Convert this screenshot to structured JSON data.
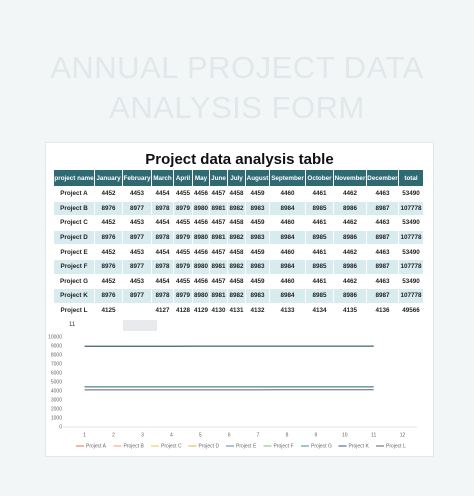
{
  "banner": [
    "ANNUAL PROJECT DATA",
    "ANALYSIS FORM"
  ],
  "table": {
    "title": "Project data analysis table",
    "header": [
      "project name",
      "January",
      "February",
      "March",
      "April",
      "May",
      "June",
      "July",
      "August",
      "September",
      "October",
      "November",
      "December",
      "total"
    ],
    "rows": [
      [
        "Project A",
        4452,
        4453,
        4454,
        4455,
        4456,
        4457,
        4458,
        4459,
        4460,
        4461,
        4462,
        4463,
        53490
      ],
      [
        "Project B",
        8976,
        8977,
        8978,
        8979,
        8980,
        8981,
        8982,
        8983,
        8984,
        8985,
        8986,
        8987,
        107778
      ],
      [
        "Project C",
        4452,
        4453,
        4454,
        4455,
        4456,
        4457,
        4458,
        4459,
        4460,
        4461,
        4462,
        4463,
        53490
      ],
      [
        "Project D",
        8976,
        8977,
        8978,
        8979,
        8980,
        8981,
        8982,
        8983,
        8984,
        8985,
        8986,
        8987,
        107778
      ],
      [
        "Project E",
        4452,
        4453,
        4454,
        4455,
        4456,
        4457,
        4458,
        4459,
        4460,
        4461,
        4462,
        4463,
        53490
      ],
      [
        "Project F",
        8976,
        8977,
        8978,
        8979,
        8980,
        8981,
        8982,
        8983,
        8984,
        8985,
        8986,
        8987,
        107778
      ],
      [
        "Project G",
        4452,
        4453,
        4454,
        4455,
        4456,
        4457,
        4458,
        4459,
        4460,
        4461,
        4462,
        4463,
        53490
      ],
      [
        "Project K",
        8976,
        8977,
        8978,
        8979,
        8980,
        8981,
        8982,
        8983,
        8984,
        8985,
        8986,
        8987,
        107778
      ],
      [
        "Project L",
        4125,
        null,
        4127,
        4128,
        4129,
        4130,
        4131,
        4132,
        4133,
        4134,
        4135,
        4136,
        49566
      ]
    ]
  },
  "cell_ref": "11",
  "chart_data": {
    "type": "line",
    "x": [
      1,
      2,
      3,
      4,
      5,
      6,
      7,
      8,
      9,
      10,
      11
    ],
    "xlim": [
      0.25,
      12.5
    ],
    "xticks": [
      1,
      2,
      3,
      4,
      5,
      6,
      7,
      8,
      9,
      10,
      11,
      12
    ],
    "ylim": [
      0,
      10000
    ],
    "yticks": [
      0,
      1000,
      2000,
      3000,
      4000,
      5000,
      6000,
      7000,
      8000,
      9000,
      10000
    ],
    "series": [
      {
        "name": "Project A",
        "color": "#e07050",
        "values": [
          4452,
          4453,
          4454,
          4455,
          4456,
          4457,
          4458,
          4459,
          4460,
          4461,
          4462
        ]
      },
      {
        "name": "Project B",
        "color": "#f0a070",
        "values": [
          8976,
          8977,
          8978,
          8979,
          8980,
          8981,
          8982,
          8983,
          8984,
          8985,
          8986
        ]
      },
      {
        "name": "Project C",
        "color": "#f2c14e",
        "values": [
          4452,
          4453,
          4454,
          4455,
          4456,
          4457,
          4458,
          4459,
          4460,
          4461,
          4462
        ]
      },
      {
        "name": "Project D",
        "color": "#e3b341",
        "values": [
          8976,
          8977,
          8978,
          8979,
          8980,
          8981,
          8982,
          8983,
          8984,
          8985,
          8986
        ]
      },
      {
        "name": "Project E",
        "color": "#5b86b8",
        "values": [
          4452,
          4453,
          4454,
          4455,
          4456,
          4457,
          4458,
          4459,
          4460,
          4461,
          4462
        ]
      },
      {
        "name": "Project F",
        "color": "#84b87e",
        "values": [
          8976,
          8977,
          8978,
          8979,
          8980,
          8981,
          8982,
          8983,
          8984,
          8985,
          8986
        ]
      },
      {
        "name": "Project G",
        "color": "#3f8f9f",
        "values": [
          4452,
          4453,
          4454,
          4455,
          4456,
          4457,
          4458,
          4459,
          4460,
          4461,
          4462
        ]
      },
      {
        "name": "Project K",
        "color": "#2f5a7f",
        "values": [
          8976,
          8977,
          8978,
          8979,
          8980,
          8981,
          8982,
          8983,
          8984,
          8985,
          8986
        ]
      },
      {
        "name": "Project L",
        "color": "#5a6266",
        "values": [
          4125,
          4126,
          4127,
          4128,
          4129,
          4130,
          4131,
          4132,
          4133,
          4134,
          4135
        ]
      }
    ]
  }
}
